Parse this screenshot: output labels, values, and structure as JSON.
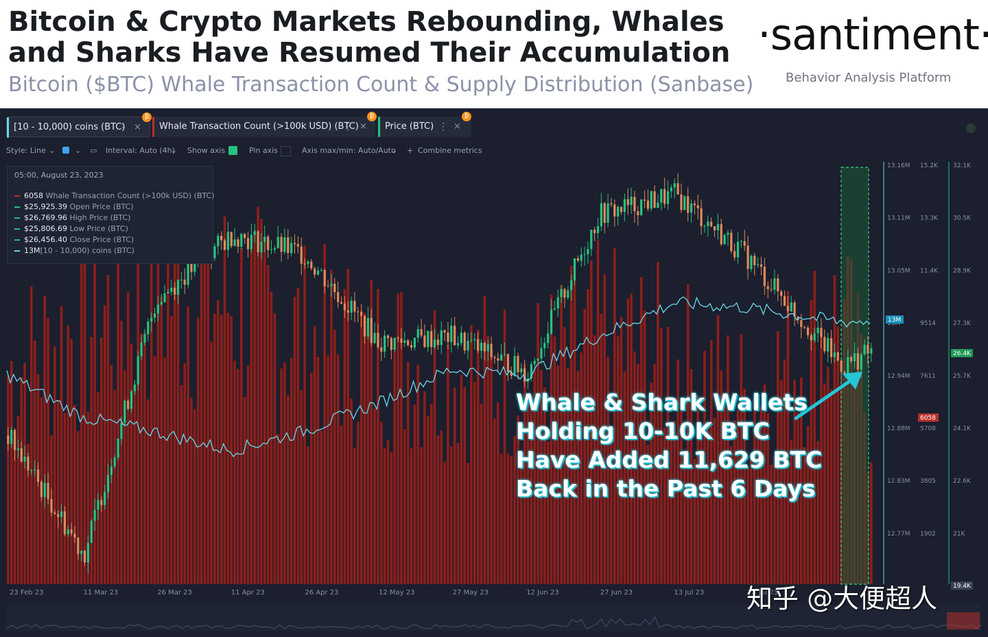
{
  "header": {
    "title": "Bitcoin & Crypto Markets Rebounding, Whales and Sharks Have Resumed Their Accumulation",
    "subtitle": "Bitcoin ($BTC) Whale Transaction Count & Supply Distribution (Sanbase)",
    "logo": "·santiment·",
    "logo_tagline": "Behavior Analysis Platform"
  },
  "metric_chips": [
    {
      "label": "[10 - 10,000) coins (BTC)",
      "color": "#68d7e8"
    },
    {
      "label": "Whale Transaction Count (>100k USD) (BTC)",
      "color": "#b8322a"
    },
    {
      "label": "Price (BTC)",
      "color": "#26c281"
    }
  ],
  "chip_icons": {
    "menu": "⋮",
    "close": "×",
    "btc": "₿"
  },
  "toolbar": {
    "style": "Style: Line",
    "interval": "Interval: Auto (4h)",
    "show_axis": "Show axis",
    "pin_axis": "Pin axis",
    "axis_maxmin": "Axis max/min: Auto/Auto",
    "combine": "Combine metrics"
  },
  "tooltip": {
    "date": "05:00, August 23, 2023",
    "rows": [
      {
        "value": "6058",
        "label": "Whale Transaction Count (>100k USD) (BTC)",
        "color": "#b8322a"
      },
      {
        "value": "$25,925.39",
        "label": "Open Price (BTC)",
        "color": "#26c281"
      },
      {
        "value": "$26,769.96",
        "label": "High Price (BTC)",
        "color": "#26c281"
      },
      {
        "value": "$25,806.69",
        "label": "Low Price (BTC)",
        "color": "#26c281"
      },
      {
        "value": "$26,456.40",
        "label": "Close Price (BTC)",
        "color": "#26c281"
      },
      {
        "value": "13M",
        "label": "[10 - 10,000) coins (BTC)",
        "color": "#68d7e8"
      }
    ]
  },
  "annotation": [
    "Whale & Shark Wallets",
    "Holding 10-10K BTC",
    "Have Added 11,629 BTC",
    "Back in the Past 6 Days"
  ],
  "watermark": "知乎 @大便超人",
  "colors": {
    "background": "#1b1f2e",
    "bars": "#8c1f1b",
    "up": "#26c281",
    "down": "#e08a5a",
    "supply": "#68d7e8"
  },
  "chart_data": {
    "type": "line",
    "x_ticks": [
      "23 Feb 23",
      "11 Mar 23",
      "26 Mar 23",
      "11 Apr 23",
      "26 Apr 23",
      "12 May 23",
      "27 May 23",
      "12 Jun 23",
      "27 Jun 23",
      "13 Jul 23",
      "28 Jul 23"
    ],
    "axes": {
      "supply": {
        "ticks": [
          "13.16M",
          "13.11M",
          "13.05M",
          "13M",
          "12.94M",
          "12.88M",
          "12.83M",
          "12.77M"
        ],
        "highlight": "13M"
      },
      "whale_tx": {
        "ticks": [
          "15.2K",
          "13.3K",
          "11.4K",
          "9514",
          "7611",
          "5708",
          "3805",
          "1902"
        ],
        "highlight": "6058"
      },
      "price": {
        "ticks": [
          "32.1K",
          "30.5K",
          "28.9K",
          "27.3K",
          "25.7K",
          "24.1K",
          "22.6K",
          "21K"
        ],
        "highlight": "26.4K",
        "bottom": "19.4K"
      }
    },
    "series": [
      {
        "name": "[10 - 10,000) coins (BTC)",
        "unit": "coins",
        "x": [
          "23 Feb 23",
          "11 Mar 23",
          "26 Mar 23",
          "11 Apr 23",
          "26 Apr 23",
          "12 May 23",
          "27 May 23",
          "12 Jun 23",
          "27 Jun 23",
          "13 Jul 23",
          "28 Jul 23",
          "17 Aug 23",
          "23 Aug 23"
        ],
        "values": [
          12940000,
          12895000,
          12880000,
          12860000,
          12880000,
          12910000,
          12945000,
          12940000,
          12980000,
          13015000,
          13010000,
          12995000,
          12996000
        ]
      },
      {
        "name": "Price (BTC)",
        "unit": "USD",
        "x": [
          "23 Feb 23",
          "11 Mar 23",
          "26 Mar 23",
          "11 Apr 23",
          "26 Apr 23",
          "12 May 23",
          "27 May 23",
          "12 Jun 23",
          "27 Jun 23",
          "13 Jul 23",
          "28 Jul 23",
          "17 Aug 23",
          "23 Aug 23"
        ],
        "values": [
          23900,
          20300,
          28000,
          30000,
          29400,
          26700,
          26900,
          25800,
          30600,
          31200,
          29300,
          26000,
          26456
        ]
      },
      {
        "name": "Whale Transaction Count (>100k USD) (BTC)",
        "unit": "count",
        "x": [
          "23 Feb 23",
          "11 Mar 23",
          "26 Mar 23",
          "11 Apr 23",
          "26 Apr 23",
          "12 May 23",
          "27 May 23",
          "12 Jun 23",
          "27 Jun 23",
          "13 Jul 23",
          "28 Jul 23",
          "17 Aug 23",
          "23 Aug 23"
        ],
        "values": [
          7800,
          9500,
          11000,
          10500,
          9000,
          8500,
          8000,
          7500,
          9000,
          8200,
          6800,
          9800,
          6058
        ]
      }
    ]
  }
}
